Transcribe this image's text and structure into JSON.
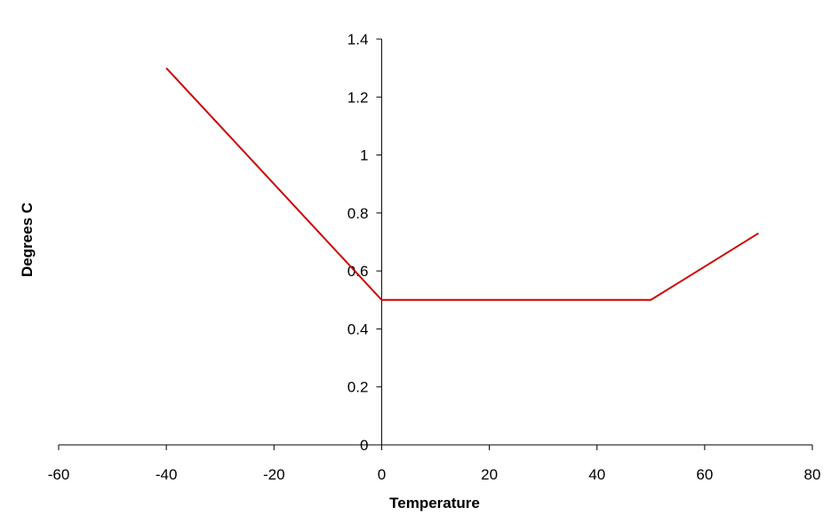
{
  "chart_data": {
    "type": "line",
    "title": "",
    "xlabel": "Temperature",
    "ylabel": "Degrees C",
    "xlim": [
      -60,
      80
    ],
    "ylim": [
      0,
      1.4
    ],
    "x_ticks": [
      -60,
      -40,
      -20,
      0,
      20,
      40,
      60,
      80
    ],
    "y_ticks": [
      0,
      0.2,
      0.4,
      0.6,
      0.8,
      1,
      1.2,
      1.4
    ],
    "x_tick_labels": [
      "-60",
      "-40",
      "-20",
      "0",
      "20",
      "40",
      "60",
      "80"
    ],
    "y_tick_labels": [
      "0",
      "0.2",
      "0.4",
      "0.6",
      "0.8",
      "1",
      "1.2",
      "1.4"
    ],
    "grid": false,
    "legend": "none",
    "series": [
      {
        "color": "#cc0000",
        "points": [
          {
            "x": -40,
            "y": 1.3
          },
          {
            "x": 0,
            "y": 0.5
          },
          {
            "x": 50,
            "y": 0.5
          },
          {
            "x": 70,
            "y": 0.73
          }
        ]
      }
    ]
  }
}
